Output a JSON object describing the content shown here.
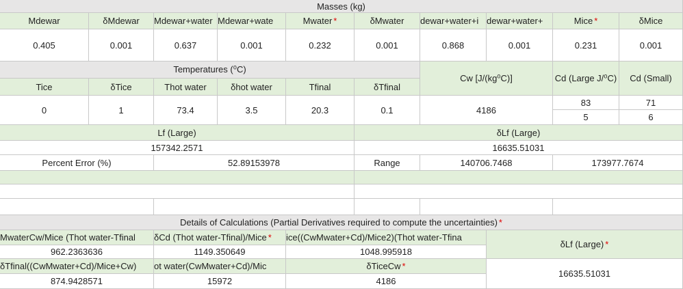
{
  "masses": {
    "title": "Masses (kg)",
    "headers": [
      "Mdewar",
      "δMdewar",
      "Mdewar+water",
      "Mdewar+wate",
      "Mwater",
      "δMwater",
      "dewar+water+i",
      "dewar+water+",
      "Mice",
      "δMice"
    ],
    "values": [
      "0.405",
      "0.001",
      "0.637",
      "0.001",
      "0.232",
      "0.001",
      "0.868",
      "0.001",
      "0.231",
      "0.001"
    ]
  },
  "temps": {
    "title": "Temperatures (⁰C)",
    "headers": [
      "Tice",
      "δTice",
      "Thot water",
      "δhot water",
      "Tfinal",
      "δTfinal"
    ],
    "values": [
      "0",
      "1",
      "73.4",
      "3.5",
      "20.3",
      "0.1"
    ]
  },
  "cw": {
    "label": "Cw [J/(kg⁰C)]",
    "value": "4186"
  },
  "cd": {
    "large_label": "Cd (Large J/⁰C)",
    "small_label": "Cd (Small)",
    "large_values": [
      "83",
      "5"
    ],
    "small_values": [
      "71",
      "6"
    ]
  },
  "results": {
    "lf_label": "Lf (Large)",
    "lf_value": "157342.2571",
    "dlf_label": "δLf (Large)",
    "dlf_value": "16635.51031",
    "pct_label": "Percent Error (%)",
    "pct_value": "52.89153978",
    "range_label": "Range",
    "range_low": "140706.7468",
    "range_high": "173977.7674"
  },
  "details": {
    "title": "Details of Calculations (Partial Derivatives required to compute the uncertainties)",
    "row1_labels": [
      "MwaterCw/Mice (Thot water-Tfinal",
      "δCd (Thot water-Tfinal)/Mice",
      "ice((CwMwater+Cd)/Mice2)(Thot water-Tfina"
    ],
    "row1_values": [
      "962.2363636",
      "1149.350649",
      "1048.995918"
    ],
    "row2_labels": [
      "δTfinal((CwMwater+Cd)/Mice+Cw)",
      "ot water(CwMwater+Cd)/Mic",
      "δTiceCw"
    ],
    "row2_values": [
      "874.9428571",
      "15972",
      "4186"
    ],
    "dlf_label": "δLf (Large)",
    "dlf_value": "16635.51031"
  },
  "colors": {
    "header_green": "#e2efda",
    "header_gray": "#e7e6e6",
    "asterisk": "#e00000",
    "grid": "#c8c8c8"
  }
}
